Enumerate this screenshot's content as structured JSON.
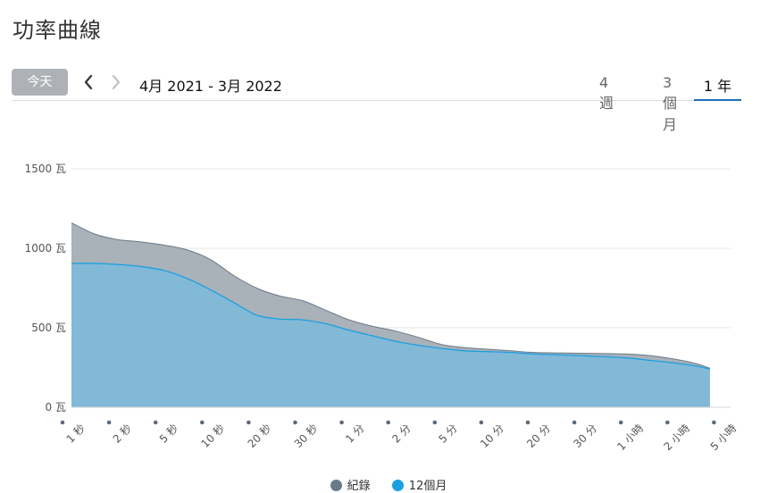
{
  "page": {
    "title": "功率曲線"
  },
  "toolbar": {
    "today_label": "今天",
    "prev_icon": "chevron-left-icon",
    "next_icon": "chevron-right-icon",
    "date_range": "4月 2021 - 3月 2022",
    "tabs": [
      {
        "label": "4 週",
        "selected": false
      },
      {
        "label": "3個月",
        "selected": false
      },
      {
        "label": "1 年",
        "selected": true
      }
    ],
    "accent_color": "#1d6fb8"
  },
  "chart_data": {
    "type": "area",
    "x_categories": [
      "1 秒",
      "2 秒",
      "5 秒",
      "10 秒",
      "20 秒",
      "30 秒",
      "1 分",
      "2 分",
      "5 分",
      "10 分",
      "20 分",
      "30 分",
      "1 小時",
      "2 小時",
      "5 小時"
    ],
    "y_ticks": [
      "0 瓦",
      "500 瓦",
      "1000 瓦",
      "1500 瓦"
    ],
    "ylim": [
      0,
      1500
    ],
    "grid": true,
    "legend_position": "bottom",
    "series": [
      {
        "name": "紀錄",
        "color": "#6b7a89",
        "fill": "#a9b1b9",
        "points": [
          [
            0,
            1160
          ],
          [
            0.5,
            1090
          ],
          [
            1,
            1055
          ],
          [
            1.5,
            1040
          ],
          [
            2,
            1020
          ],
          [
            2.5,
            990
          ],
          [
            3,
            930
          ],
          [
            3.5,
            830
          ],
          [
            4,
            750
          ],
          [
            4.5,
            700
          ],
          [
            5,
            670
          ],
          [
            5.5,
            610
          ],
          [
            6,
            550
          ],
          [
            6.5,
            510
          ],
          [
            7,
            480
          ],
          [
            7.5,
            440
          ],
          [
            8,
            395
          ],
          [
            8.5,
            375
          ],
          [
            9,
            365
          ],
          [
            9.5,
            355
          ],
          [
            10,
            345
          ],
          [
            11,
            340
          ],
          [
            12,
            335
          ],
          [
            12.5,
            325
          ],
          [
            13,
            305
          ],
          [
            13.5,
            275
          ],
          [
            13.8,
            245
          ]
        ]
      },
      {
        "name": "12個月",
        "color": "#1a9fe0",
        "fill": "#7fb9d8",
        "points": [
          [
            0,
            905
          ],
          [
            0.5,
            905
          ],
          [
            1,
            898
          ],
          [
            1.5,
            885
          ],
          [
            2,
            860
          ],
          [
            2.5,
            810
          ],
          [
            3,
            740
          ],
          [
            3.5,
            660
          ],
          [
            4,
            580
          ],
          [
            4.5,
            555
          ],
          [
            5,
            550
          ],
          [
            5.5,
            525
          ],
          [
            6,
            485
          ],
          [
            6.5,
            450
          ],
          [
            7,
            415
          ],
          [
            7.5,
            390
          ],
          [
            8,
            370
          ],
          [
            8.5,
            355
          ],
          [
            9,
            350
          ],
          [
            9.5,
            345
          ],
          [
            10,
            335
          ],
          [
            11,
            325
          ],
          [
            12,
            310
          ],
          [
            12.5,
            295
          ],
          [
            13,
            280
          ],
          [
            13.5,
            260
          ],
          [
            13.8,
            240
          ]
        ]
      }
    ]
  }
}
